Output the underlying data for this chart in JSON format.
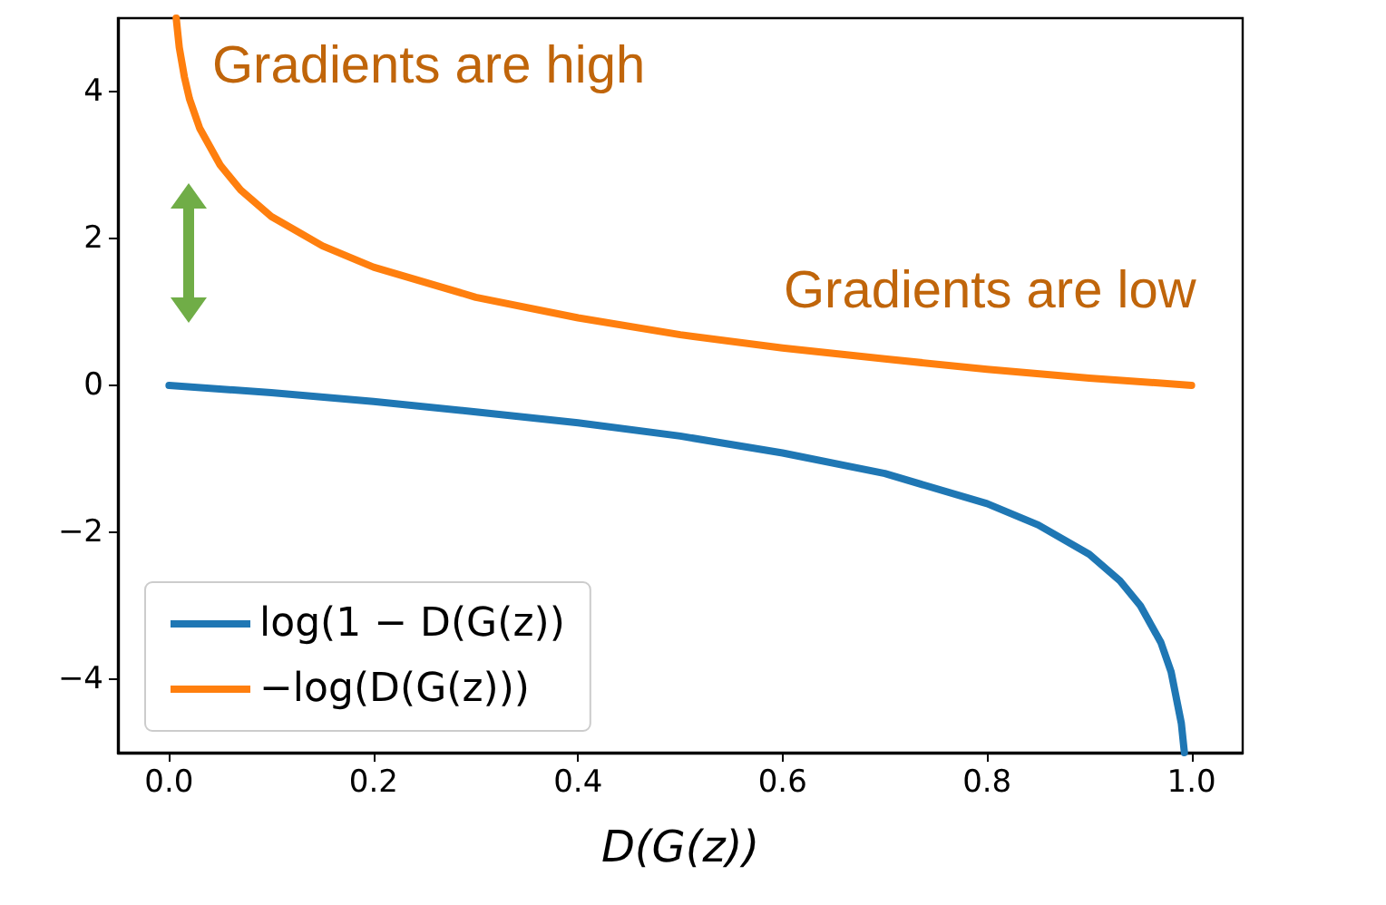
{
  "chart_data": {
    "type": "line",
    "xlabel": "D(G(z))",
    "xlim": [
      -0.05,
      1.05
    ],
    "ylim": [
      -5,
      5
    ],
    "xticks": [
      {
        "value": 0,
        "label": "0.0"
      },
      {
        "value": 0.2,
        "label": "0.2"
      },
      {
        "value": 0.4,
        "label": "0.4"
      },
      {
        "value": 0.6,
        "label": "0.6"
      },
      {
        "value": 0.8,
        "label": "0.8"
      },
      {
        "value": 1,
        "label": "1.0"
      }
    ],
    "yticks": [
      {
        "value": -4,
        "label": "−4"
      },
      {
        "value": -2,
        "label": "−2"
      },
      0,
      2,
      4
    ],
    "grid": false,
    "legend": "bottom left",
    "marker": "none",
    "line_style": "solid",
    "annotations": [
      "Gradients are high",
      "Gradients are low"
    ],
    "series": [
      {
        "name": "log(1 − D(G(z))",
        "color": "#1f77b4",
        "x": [
          0,
          0.1,
          0.2,
          0.3,
          0.4,
          0.5,
          0.6,
          0.7,
          0.8,
          0.85,
          0.9,
          0.93,
          0.95,
          0.97,
          0.98,
          0.99,
          0.993
        ],
        "values": [
          0,
          -0.1,
          -0.22,
          -0.36,
          -0.51,
          -0.69,
          -0.92,
          -1.2,
          -1.61,
          -1.9,
          -2.3,
          -2.66,
          -3.0,
          -3.5,
          -3.9,
          -4.6,
          -5.0
        ]
      },
      {
        "name": "−log(D(G(z)))",
        "color": "#ff7f0e",
        "x": [
          0.007,
          0.01,
          0.015,
          0.02,
          0.03,
          0.05,
          0.07,
          0.1,
          0.15,
          0.2,
          0.3,
          0.4,
          0.5,
          0.6,
          0.7,
          0.8,
          0.9,
          1.0
        ],
        "values": [
          5.0,
          4.6,
          4.2,
          3.9,
          3.5,
          3.0,
          2.66,
          2.3,
          1.9,
          1.61,
          1.2,
          0.92,
          0.69,
          0.51,
          0.36,
          0.22,
          0.1,
          0
        ]
      }
    ]
  }
}
